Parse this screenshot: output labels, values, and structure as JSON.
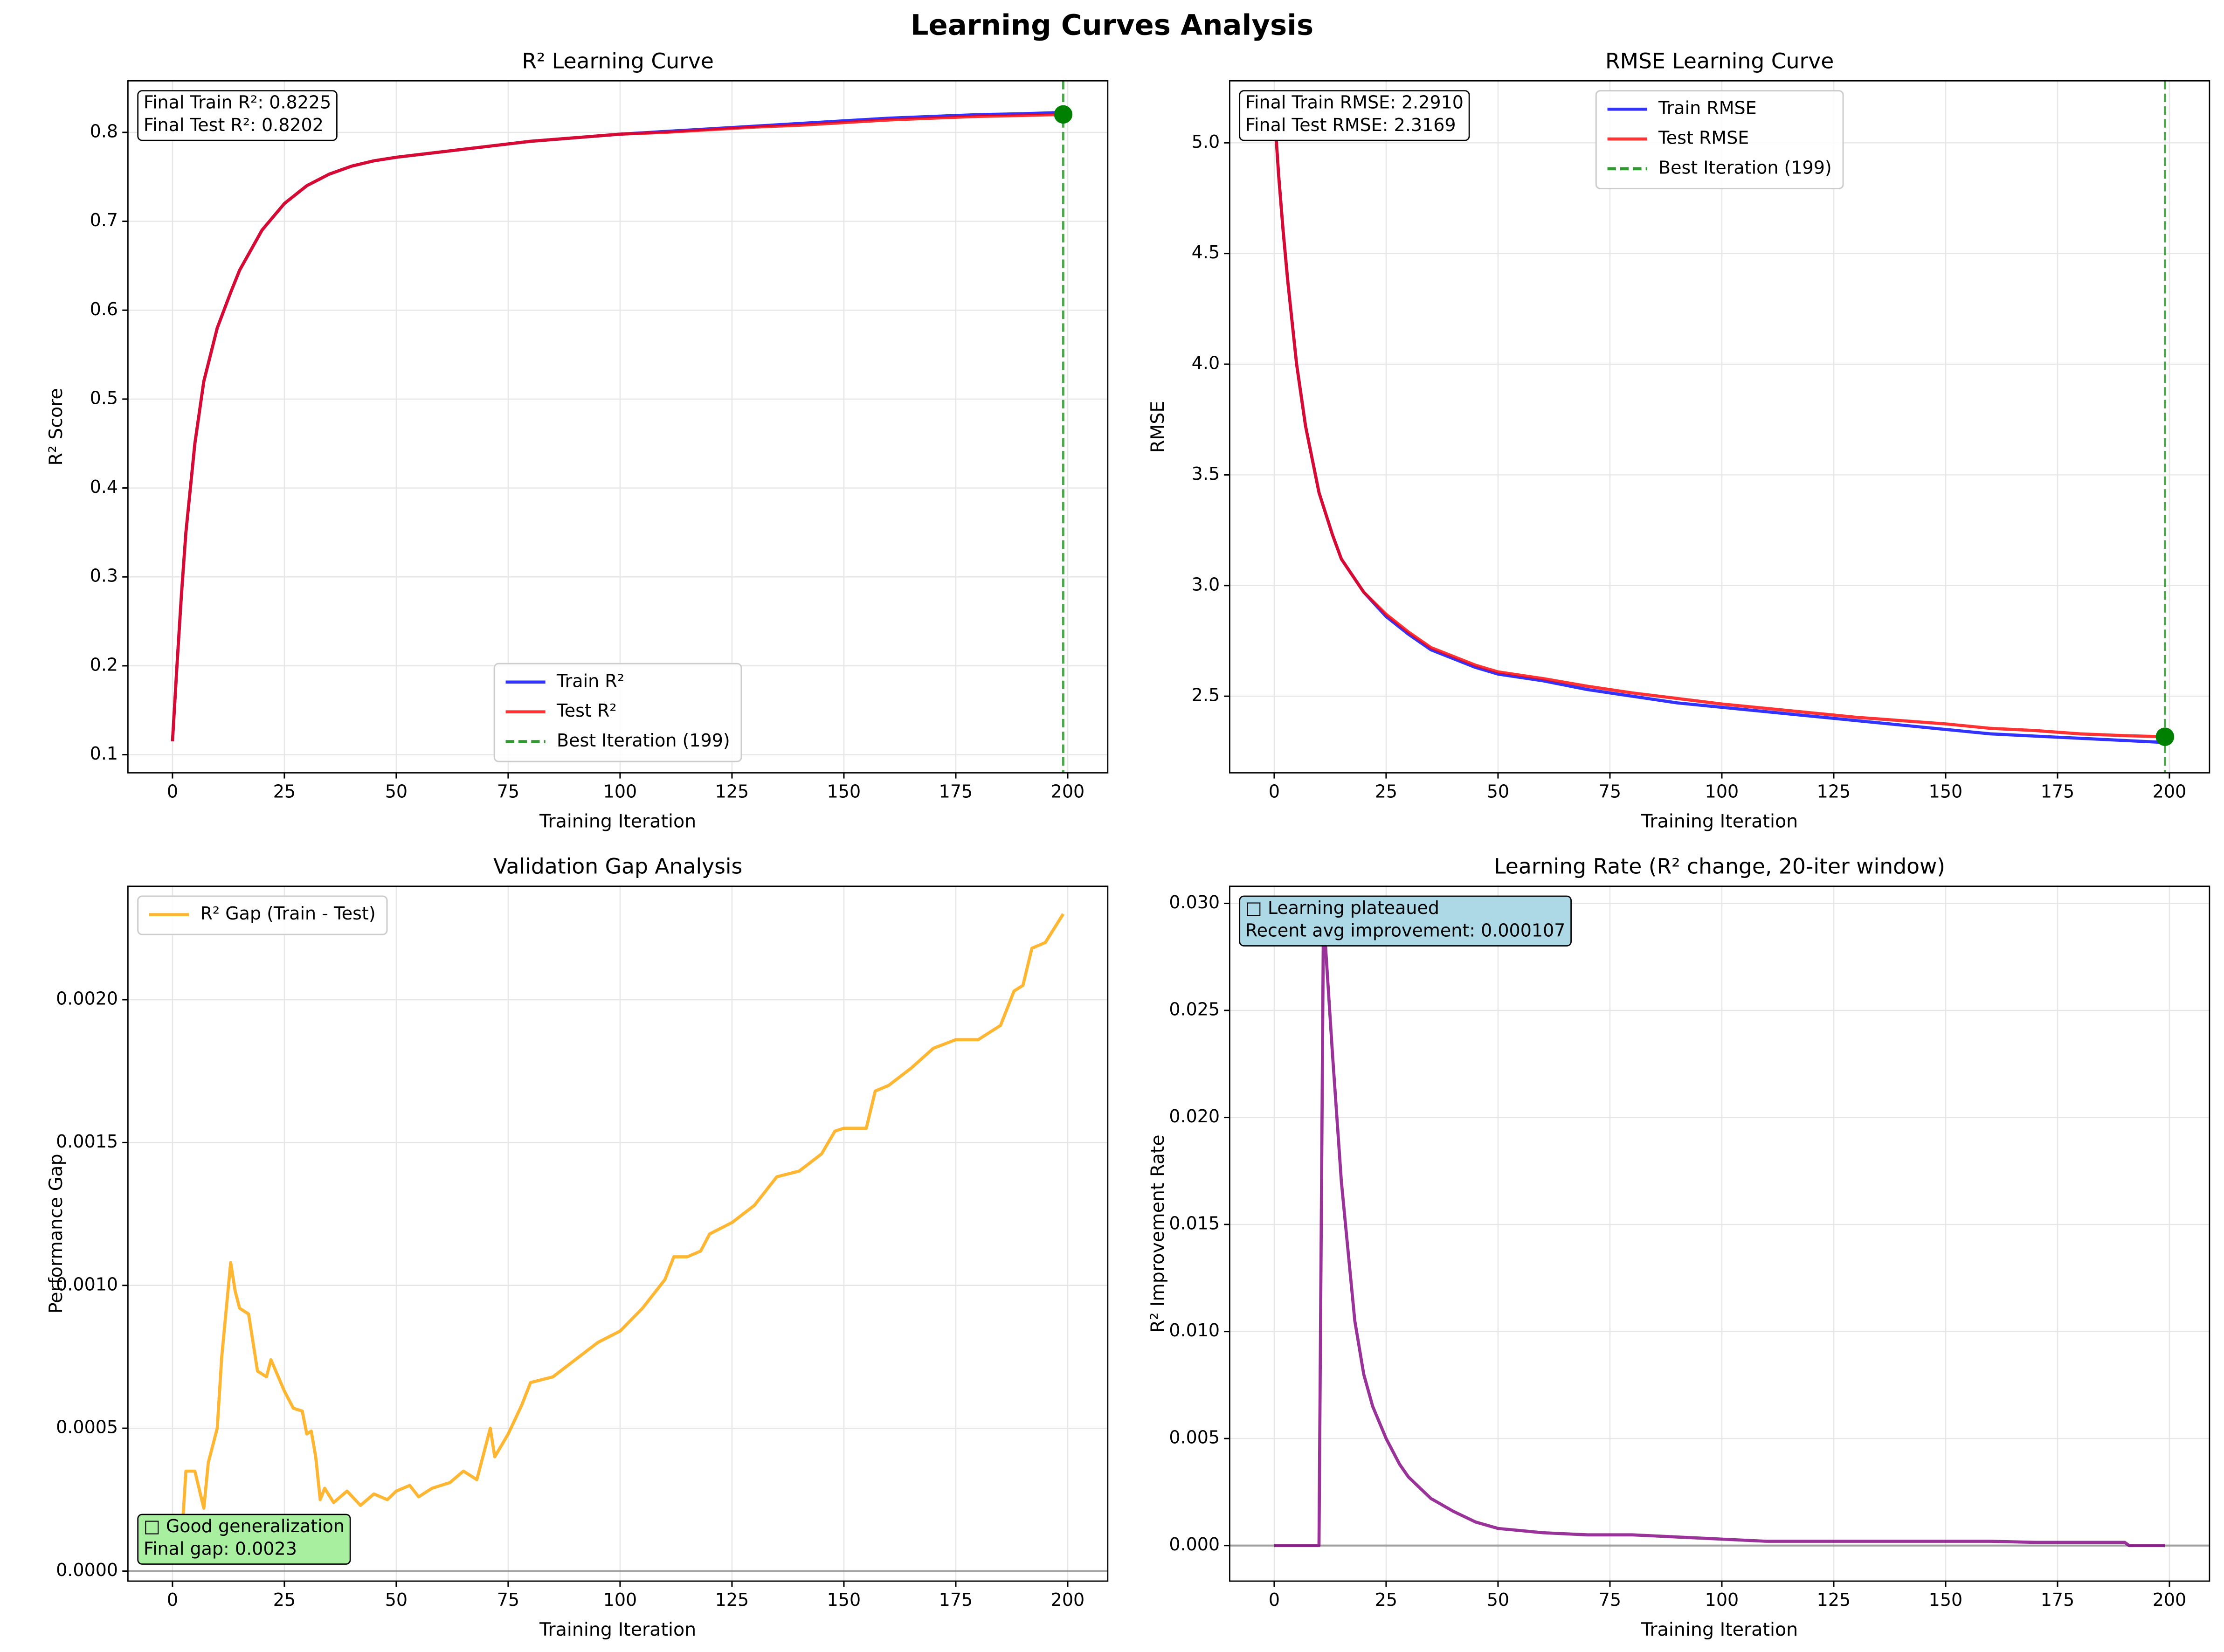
{
  "title": "Learning Curves Analysis",
  "chart_data": [
    {
      "type": "line",
      "title": "R² Learning Curve",
      "xlabel": "Training Iteration",
      "ylabel": "R² Score",
      "x": [
        0,
        1,
        2,
        3,
        5,
        7,
        10,
        13,
        15,
        20,
        25,
        30,
        35,
        40,
        45,
        50,
        60,
        70,
        80,
        90,
        100,
        110,
        120,
        130,
        140,
        150,
        160,
        170,
        180,
        190,
        199
      ],
      "series": [
        {
          "name": "Train R²",
          "color": "#0000ff",
          "values": [
            0.115,
            0.2,
            0.28,
            0.35,
            0.45,
            0.52,
            0.58,
            0.62,
            0.645,
            0.69,
            0.72,
            0.74,
            0.753,
            0.762,
            0.768,
            0.772,
            0.778,
            0.784,
            0.79,
            0.794,
            0.798,
            0.801,
            0.804,
            0.807,
            0.81,
            0.813,
            0.816,
            0.818,
            0.82,
            0.821,
            0.8225
          ]
        },
        {
          "name": "Test R²",
          "color": "#ff0000",
          "values": [
            0.115,
            0.2,
            0.28,
            0.35,
            0.45,
            0.52,
            0.58,
            0.62,
            0.645,
            0.69,
            0.72,
            0.74,
            0.753,
            0.762,
            0.768,
            0.772,
            0.778,
            0.784,
            0.79,
            0.794,
            0.798,
            0.8,
            0.803,
            0.806,
            0.808,
            0.811,
            0.814,
            0.816,
            0.818,
            0.819,
            0.8202
          ]
        }
      ],
      "vline": {
        "x": 199,
        "label": "Best Iteration (199)",
        "color": "#008000"
      },
      "best_point": {
        "x": 199,
        "y": 0.8202,
        "color": "#008000"
      },
      "annotation": [
        "Final Train R²: 0.8225",
        "Final Test R²: 0.8202"
      ],
      "annotation_loc": "upper left",
      "annotation_color": "#ffffff",
      "xlim": [
        -9.95,
        208.95
      ],
      "ylim": [
        0.0796,
        0.858
      ],
      "xticks": [
        0,
        25,
        50,
        75,
        100,
        125,
        150,
        175,
        200
      ],
      "yticks": [
        0.1,
        0.2,
        0.3,
        0.4,
        0.5,
        0.6,
        0.7,
        0.8
      ],
      "grid": true,
      "legend": "lower center"
    },
    {
      "type": "line",
      "title": "RMSE Learning Curve",
      "xlabel": "Training Iteration",
      "ylabel": "RMSE",
      "x": [
        0,
        1,
        2,
        3,
        5,
        7,
        10,
        13,
        15,
        20,
        25,
        30,
        35,
        40,
        45,
        50,
        60,
        70,
        80,
        90,
        100,
        110,
        120,
        130,
        140,
        150,
        160,
        170,
        180,
        190,
        199
      ],
      "series": [
        {
          "name": "Train RMSE",
          "color": "#0000ff",
          "values": [
            5.15,
            4.85,
            4.6,
            4.38,
            4.0,
            3.72,
            3.42,
            3.23,
            3.12,
            2.97,
            2.86,
            2.78,
            2.71,
            2.67,
            2.63,
            2.6,
            2.57,
            2.53,
            2.5,
            2.47,
            2.45,
            2.43,
            2.41,
            2.39,
            2.37,
            2.35,
            2.33,
            2.32,
            2.31,
            2.3,
            2.291
          ]
        },
        {
          "name": "Test RMSE",
          "color": "#ff0000",
          "values": [
            5.15,
            4.85,
            4.6,
            4.38,
            4.0,
            3.72,
            3.42,
            3.23,
            3.12,
            2.97,
            2.87,
            2.79,
            2.72,
            2.68,
            2.64,
            2.61,
            2.58,
            2.545,
            2.515,
            2.49,
            2.465,
            2.445,
            2.425,
            2.405,
            2.39,
            2.375,
            2.355,
            2.345,
            2.33,
            2.322,
            2.3169
          ]
        }
      ],
      "vline": {
        "x": 199,
        "label": "Best Iteration (199)",
        "color": "#008000"
      },
      "best_point": {
        "x": 199,
        "y": 2.3169,
        "color": "#008000"
      },
      "annotation": [
        "Final Train RMSE: 2.2910",
        "Final Test RMSE: 2.3169"
      ],
      "annotation_loc": "upper left",
      "annotation_color": "#ffffff",
      "xlim": [
        -9.95,
        208.95
      ],
      "ylim": [
        2.154,
        5.28
      ],
      "xticks": [
        0,
        25,
        50,
        75,
        100,
        125,
        150,
        175,
        200
      ],
      "yticks": [
        {
          "value": 2.5,
          "label": "2.5"
        },
        {
          "value": 3,
          "label": "3.0"
        },
        {
          "value": 3.5,
          "label": "3.5"
        },
        {
          "value": 4,
          "label": "4.0"
        },
        {
          "value": 4.5,
          "label": "4.5"
        },
        {
          "value": 5,
          "label": "5.0"
        }
      ],
      "grid": true,
      "legend": "upper center"
    },
    {
      "type": "line",
      "title": "Validation Gap Analysis",
      "xlabel": "Training Iteration",
      "ylabel": "Performance Gap",
      "x": [
        0,
        2,
        3,
        5,
        7,
        8,
        10,
        11,
        13,
        14,
        15,
        17,
        19,
        21,
        22,
        25,
        27,
        29,
        30,
        31,
        32,
        33,
        34,
        36,
        39,
        42,
        45,
        48,
        50,
        53,
        55,
        58,
        62,
        65,
        68,
        71,
        72,
        75,
        78,
        80,
        85,
        90,
        95,
        100,
        105,
        110,
        112,
        115,
        118,
        120,
        125,
        130,
        135,
        140,
        145,
        148,
        150,
        155,
        157,
        160,
        165,
        170,
        175,
        180,
        185,
        188,
        190,
        192,
        195,
        199
      ],
      "series": [
        {
          "name": "R² Gap (Train - Test)",
          "color": "#ffa500",
          "values": [
            0.0002,
            0.0001,
            0.00035,
            0.00035,
            0.00022,
            0.00038,
            0.0005,
            0.00075,
            0.00108,
            0.00098,
            0.00092,
            0.0009,
            0.0007,
            0.00068,
            0.00074,
            0.00063,
            0.00057,
            0.00056,
            0.00048,
            0.00049,
            0.0004,
            0.00025,
            0.00029,
            0.00024,
            0.00028,
            0.00023,
            0.00027,
            0.00025,
            0.00028,
            0.0003,
            0.00026,
            0.00029,
            0.00031,
            0.00035,
            0.00032,
            0.0005,
            0.0004,
            0.00048,
            0.00058,
            0.00066,
            0.00068,
            0.00074,
            0.0008,
            0.00084,
            0.00092,
            0.00102,
            0.0011,
            0.0011,
            0.00112,
            0.00118,
            0.00122,
            0.00128,
            0.00138,
            0.0014,
            0.00146,
            0.00154,
            0.00155,
            0.00155,
            0.00168,
            0.0017,
            0.00176,
            0.00183,
            0.00186,
            0.00186,
            0.00191,
            0.00203,
            0.00205,
            0.00218,
            0.0022,
            0.0023
          ]
        }
      ],
      "hline": 0,
      "annotation": [
        "□ Good generalization",
        "Final gap: 0.0023"
      ],
      "annotation_loc": "lower left",
      "annotation_color": "#a8f0a0",
      "xlim": [
        -9.95,
        208.95
      ],
      "ylim": [
        -3.5e-05,
        0.002397
      ],
      "xticks": [
        0,
        25,
        50,
        75,
        100,
        125,
        150,
        175,
        200
      ],
      "yticks": [
        {
          "value": 0,
          "label": "0.0000"
        },
        {
          "value": 0.0005,
          "label": "0.0005"
        },
        {
          "value": 0.001,
          "label": "0.0010"
        },
        {
          "value": 0.0015,
          "label": "0.0015"
        },
        {
          "value": 0.002,
          "label": "0.0020"
        }
      ],
      "grid": true,
      "legend": "upper left"
    },
    {
      "type": "line",
      "title": "Learning Rate (R² change, 20-iter window)",
      "xlabel": "Training Iteration",
      "ylabel": "R² Improvement Rate",
      "x": [
        0,
        10,
        11,
        13,
        15,
        18,
        20,
        22,
        25,
        28,
        30,
        35,
        40,
        45,
        50,
        55,
        60,
        70,
        80,
        90,
        100,
        110,
        120,
        130,
        140,
        150,
        160,
        170,
        180,
        190,
        191,
        199
      ],
      "series": [
        {
          "color": "#800080",
          "values": [
            0,
            0,
            0.0295,
            0.023,
            0.017,
            0.0105,
            0.008,
            0.0065,
            0.005,
            0.0038,
            0.0032,
            0.0022,
            0.0016,
            0.0011,
            0.0008,
            0.0007,
            0.0006,
            0.0005,
            0.0005,
            0.0004,
            0.0003,
            0.0002,
            0.0002,
            0.0002,
            0.0002,
            0.0002,
            0.0002,
            0.00015,
            0.00015,
            0.00015,
            0,
            0
          ]
        }
      ],
      "hline": 0,
      "annotation": [
        "□ Learning plateaued",
        "Recent avg improvement: 0.000107"
      ],
      "annotation_loc": "upper left",
      "annotation_color": "#add8e6",
      "xlim": [
        -9.95,
        208.95
      ],
      "ylim": [
        -0.00166,
        0.0308
      ],
      "xticks": [
        0,
        25,
        50,
        75,
        100,
        125,
        150,
        175,
        200
      ],
      "yticks": [
        {
          "value": 0,
          "label": "0.000"
        },
        {
          "value": 0.005,
          "label": "0.005"
        },
        {
          "value": 0.01,
          "label": "0.010"
        },
        {
          "value": 0.015,
          "label": "0.015"
        },
        {
          "value": 0.02,
          "label": "0.020"
        },
        {
          "value": 0.025,
          "label": "0.025"
        },
        {
          "value": 0.03,
          "label": "0.030"
        }
      ],
      "grid": true
    }
  ]
}
